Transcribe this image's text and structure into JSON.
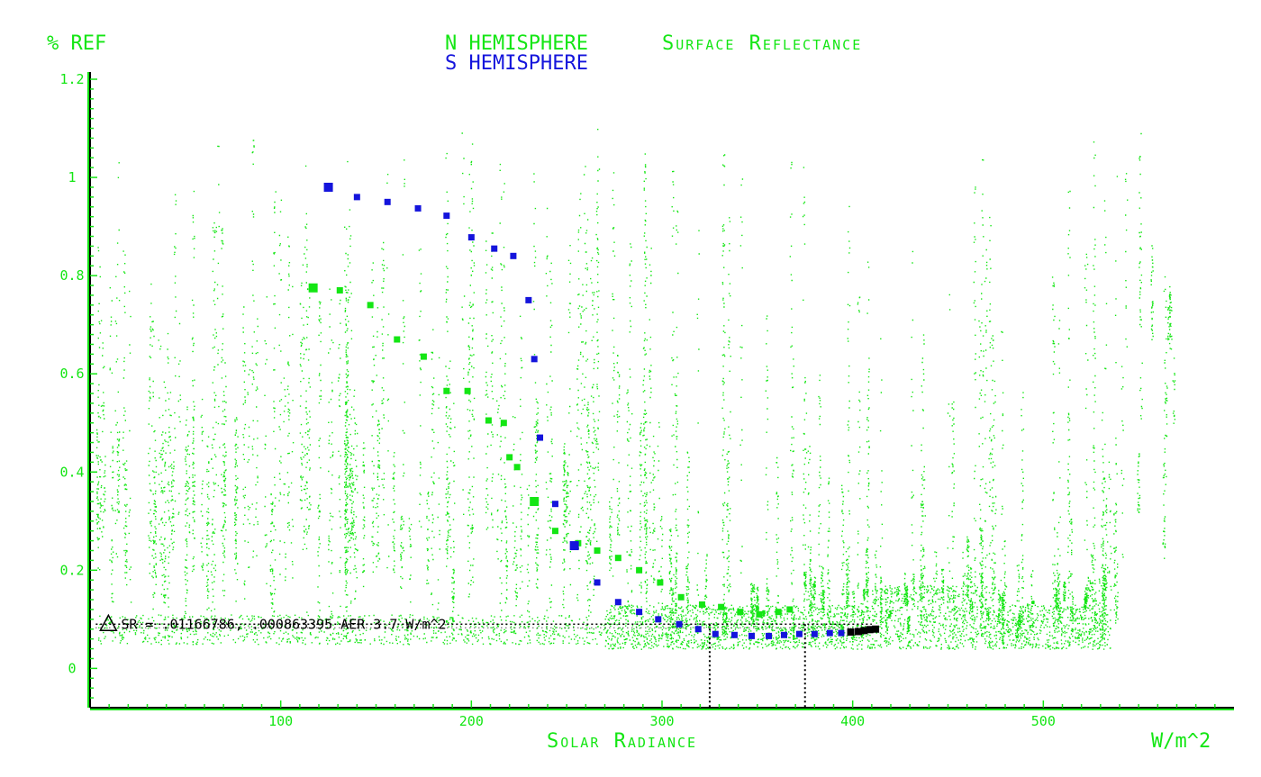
{
  "colors": {
    "north": "#14e614",
    "south": "#1414dc",
    "axis": "#14e614",
    "annotation": "#000000",
    "background": "#ffffff"
  },
  "chart_data": {
    "type": "scatter",
    "title_line1": "N HEMISPHERE",
    "title_line1_rest": "Surface Reflectance",
    "title_line2": "S HEMISPHERE",
    "ylabel": "% REF",
    "xlabel": "Solar Radiance",
    "x_unit_label": "W/m^2",
    "xlim": [
      0,
      600
    ],
    "ylim": [
      -0.08,
      1.2
    ],
    "x_ticks": [
      100,
      200,
      300,
      400,
      500
    ],
    "x_tick_labels": [
      "100",
      "200",
      "300",
      "400",
      "500"
    ],
    "y_ticks": [
      0,
      0.2,
      0.4,
      0.6,
      0.8,
      1,
      1.2
    ],
    "y_tick_labels": [
      "0",
      "0.2",
      "0.4",
      "0.6",
      "0.8",
      "1",
      "1.2"
    ],
    "grid": false,
    "background_scatter": {
      "name": "N HEMISPHERE",
      "color": "#14e614",
      "description_of_spread": "dense vertical streaks of small points from x 0 to ~600, reflectance from ~0.05 to ~1.1; dense band near 0.05–0.15 between x 300 and 530"
    },
    "series": [
      {
        "name": "N HEMISPHERE",
        "color": "#14e614",
        "points": [
          [
            117,
            0.775
          ],
          [
            131,
            0.77
          ],
          [
            147,
            0.74
          ],
          [
            161,
            0.67
          ],
          [
            175,
            0.635
          ],
          [
            187,
            0.565
          ],
          [
            198,
            0.565
          ],
          [
            209,
            0.505
          ],
          [
            217,
            0.5
          ],
          [
            220,
            0.43
          ],
          [
            224,
            0.41
          ],
          [
            233,
            0.34
          ],
          [
            244,
            0.28
          ],
          [
            256,
            0.255
          ],
          [
            266,
            0.24
          ],
          [
            277,
            0.225
          ],
          [
            288,
            0.2
          ],
          [
            299,
            0.175
          ],
          [
            310,
            0.145
          ],
          [
            321,
            0.13
          ],
          [
            331,
            0.125
          ],
          [
            341,
            0.115
          ],
          [
            351,
            0.11
          ],
          [
            361,
            0.115
          ],
          [
            367,
            0.12
          ]
        ]
      },
      {
        "name": "S HEMISPHERE",
        "color": "#1414dc",
        "points": [
          [
            125,
            0.98
          ],
          [
            140,
            0.96
          ],
          [
            156,
            0.95
          ],
          [
            172,
            0.937
          ],
          [
            187,
            0.922
          ],
          [
            200,
            0.878
          ],
          [
            212,
            0.855
          ],
          [
            222,
            0.84
          ],
          [
            230,
            0.75
          ],
          [
            233,
            0.63
          ],
          [
            236,
            0.47
          ],
          [
            244,
            0.335
          ],
          [
            254,
            0.25
          ],
          [
            266,
            0.175
          ],
          [
            277,
            0.135
          ],
          [
            288,
            0.115
          ],
          [
            298,
            0.1
          ],
          [
            309,
            0.09
          ],
          [
            319,
            0.08
          ],
          [
            328,
            0.07
          ],
          [
            338,
            0.068
          ],
          [
            347,
            0.066
          ],
          [
            356,
            0.066
          ],
          [
            364,
            0.068
          ],
          [
            372,
            0.07
          ],
          [
            380,
            0.07
          ],
          [
            388,
            0.072
          ],
          [
            394,
            0.072
          ],
          [
            399,
            0.074
          ],
          [
            403,
            0.075
          ],
          [
            406,
            0.077
          ],
          [
            409,
            0.079
          ],
          [
            412,
            0.08
          ]
        ]
      }
    ],
    "annotation": {
      "text": "SR = .01166786, .000863395 AER 3.7 W/m^2",
      "y_value": 0.09,
      "x_start": 3,
      "x_end": 410,
      "marker_x": [
        325,
        375
      ],
      "marker_y_from": 0.09
    }
  }
}
